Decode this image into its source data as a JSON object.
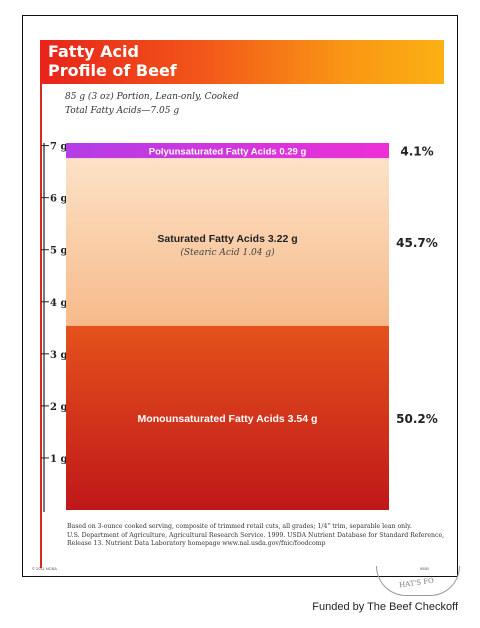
{
  "page": {
    "title_line1": "Fatty Acid",
    "title_line2": "Profile of Beef",
    "subtitle_line1": "85 g (3 oz) Portion, Lean-only, Cooked",
    "subtitle_line2": "Total Fatty Acids—7.05 g",
    "footnote_lines": [
      "Based on 3-ounce cooked serving, composite of trimmed retail cuts, all grades; 1/4\" trim, separable lean only.",
      "U.S. Department of Agriculture, Agricultural Research Service. 1999. USDA Nutrient Database for Standard Reference,",
      "Release 13. Nutrient Data Laboratory homepage www.nal.usda.gov/fnic/foodcomp"
    ],
    "fine_print_left": "© 2011 NCBA",
    "fine_print_right": "9550",
    "stamp_text": "HAT'S FO",
    "funding_credit": "Funded by The Beef Checkoff"
  },
  "chart_data": {
    "type": "bar",
    "stacked": true,
    "ylim": [
      0,
      7.05
    ],
    "ytick_values": [
      1,
      2,
      3,
      4,
      5,
      6,
      7
    ],
    "ytick_labels": [
      "1 g",
      "2 g",
      "3 g",
      "4 g",
      "5 g",
      "6 g",
      "7 g"
    ],
    "grid": false,
    "segments": [
      {
        "name": "Monounsaturated Fatty Acids",
        "label": "Monounsaturated Fatty Acids 3.54 g",
        "value": 3.54,
        "percent_label": "50.2%",
        "colors": [
          "#c0171a",
          "#e4521c"
        ],
        "text_color": "#ffffff"
      },
      {
        "name": "Saturated Fatty Acids",
        "label": "Saturated Fatty Acids 3.22 g",
        "sublabel": "(Stearic Acid 1.04 g)",
        "value": 3.22,
        "percent_label": "45.7%",
        "colors": [
          "#f6ba8a",
          "#fce2c6"
        ],
        "text_color": "#222222"
      },
      {
        "name": "Polyunsaturated Fatty Acids",
        "label": "Polyunsaturated Fatty Acids 0.29 g",
        "value": 0.29,
        "percent_label": "4.1%",
        "colors": [
          "#b43de6",
          "#ee2fd6"
        ],
        "text_color": "#ffffff"
      }
    ]
  }
}
